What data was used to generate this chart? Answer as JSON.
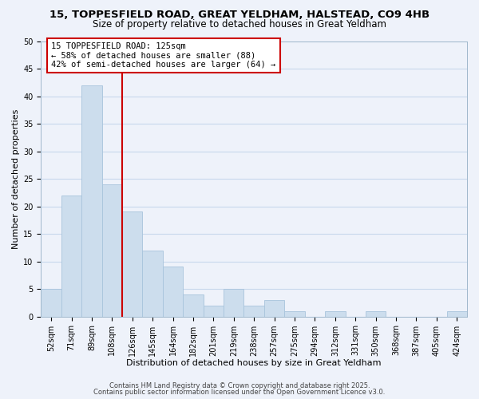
{
  "title_line1": "15, TOPPESFIELD ROAD, GREAT YELDHAM, HALSTEAD, CO9 4HB",
  "title_line2": "Size of property relative to detached houses in Great Yeldham",
  "xlabel": "Distribution of detached houses by size in Great Yeldham",
  "ylabel": "Number of detached properties",
  "bar_labels": [
    "52sqm",
    "71sqm",
    "89sqm",
    "108sqm",
    "126sqm",
    "145sqm",
    "164sqm",
    "182sqm",
    "201sqm",
    "219sqm",
    "238sqm",
    "257sqm",
    "275sqm",
    "294sqm",
    "312sqm",
    "331sqm",
    "350sqm",
    "368sqm",
    "387sqm",
    "405sqm",
    "424sqm"
  ],
  "bar_values": [
    5,
    22,
    42,
    24,
    19,
    12,
    9,
    4,
    2,
    5,
    2,
    3,
    1,
    0,
    1,
    0,
    1,
    0,
    0,
    0,
    1
  ],
  "bar_color": "#ccdded",
  "bar_edge_color": "#a8c4dc",
  "grid_color": "#c8d8ec",
  "background_color": "#eef2fa",
  "vline_color": "#cc0000",
  "annotation_line1": "15 TOPPESFIELD ROAD: 125sqm",
  "annotation_line2": "← 58% of detached houses are smaller (88)",
  "annotation_line3": "42% of semi-detached houses are larger (64) →",
  "ylim": [
    0,
    50
  ],
  "yticks": [
    0,
    5,
    10,
    15,
    20,
    25,
    30,
    35,
    40,
    45,
    50
  ],
  "footer_line1": "Contains HM Land Registry data © Crown copyright and database right 2025.",
  "footer_line2": "Contains public sector information licensed under the Open Government Licence v3.0.",
  "title_fontsize": 9.5,
  "subtitle_fontsize": 8.5,
  "axis_label_fontsize": 8,
  "tick_fontsize": 7,
  "annotation_fontsize": 7.5,
  "footer_fontsize": 6
}
